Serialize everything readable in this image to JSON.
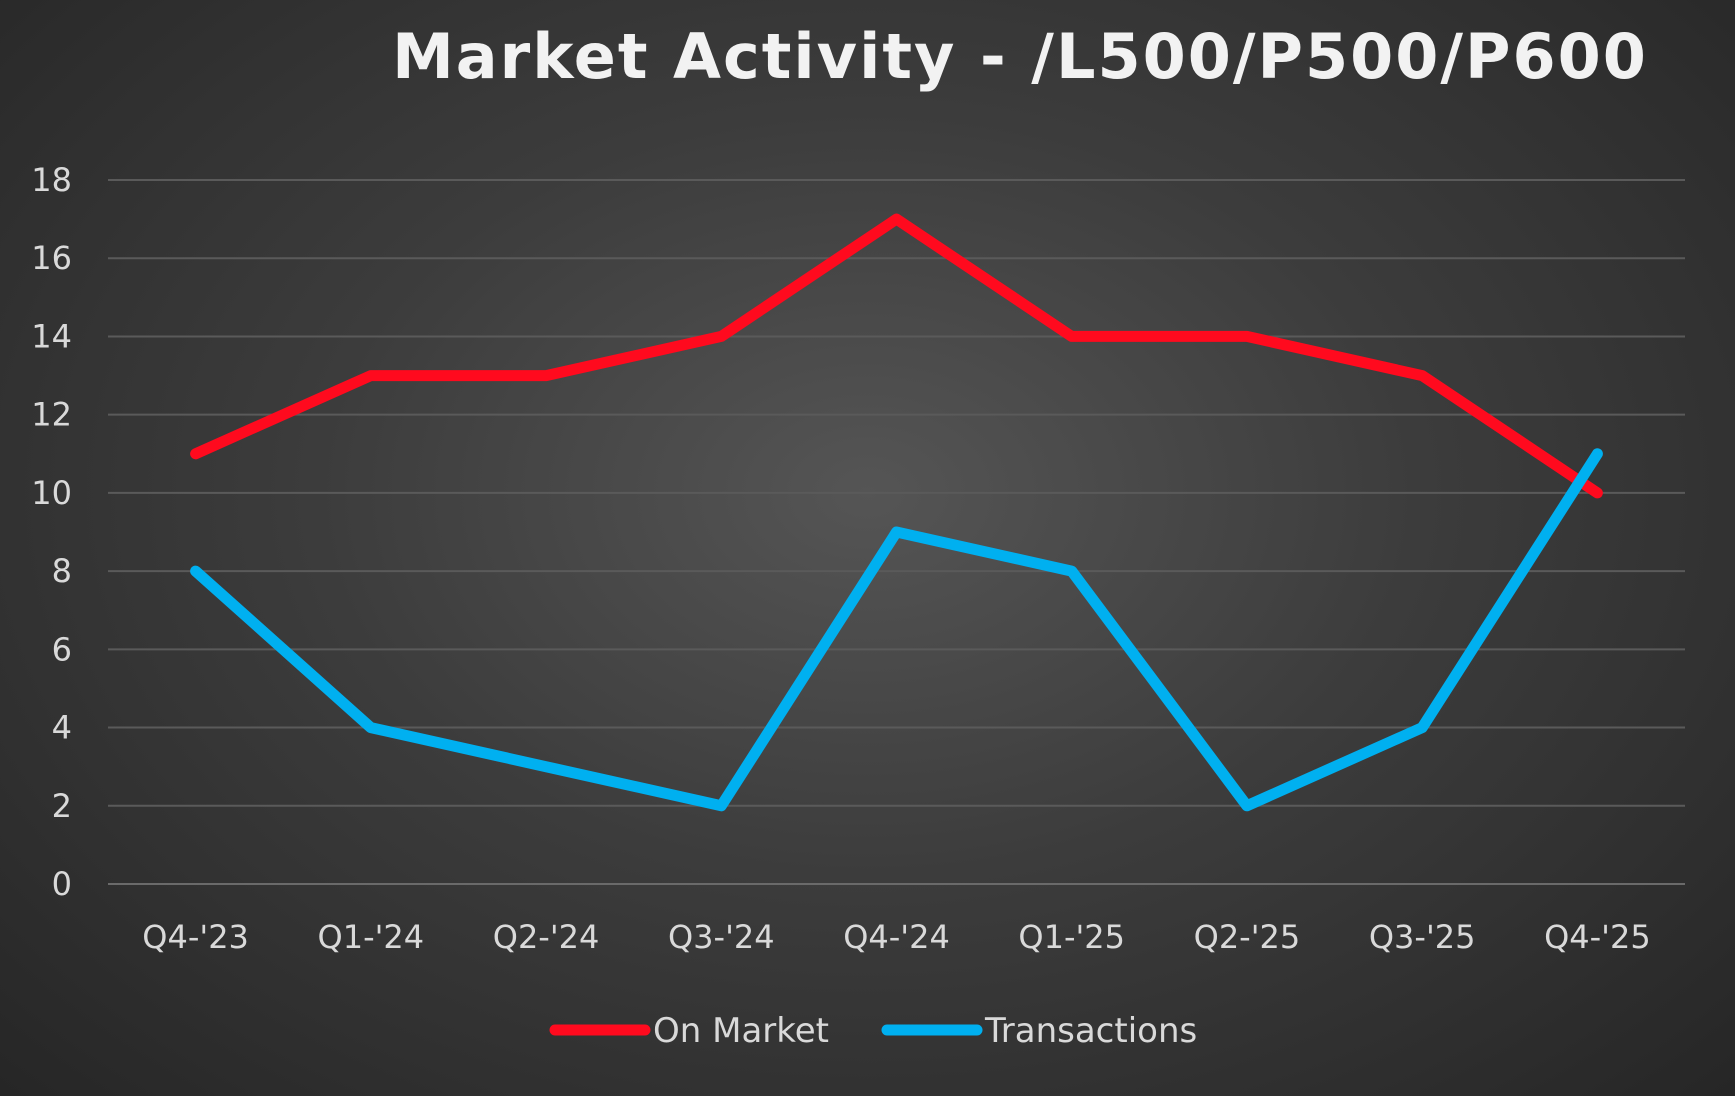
{
  "chart_data": {
    "type": "line",
    "title": "Market Activity - /L500/P500/P600",
    "xlabel": "",
    "ylabel": "",
    "categories": [
      "Q4-'23",
      "Q1-'24",
      "Q2-'24",
      "Q3-'24",
      "Q4-'24",
      "Q1-'25",
      "Q2-'25",
      "Q3-'25",
      "Q4-'25"
    ],
    "ylim": [
      0,
      18
    ],
    "yticks": [
      "0",
      "2",
      "4",
      "6",
      "8",
      "10",
      "12",
      "14",
      "16",
      "18"
    ],
    "grid": true,
    "legend_position": "bottom",
    "series": [
      {
        "name": "On Market",
        "color": "#ff0a1e",
        "values": [
          11,
          13,
          13,
          14,
          17,
          14,
          14,
          13,
          10
        ]
      },
      {
        "name": "Transactions",
        "color": "#00b0f0",
        "values": [
          8,
          4,
          3,
          2,
          9,
          8,
          2,
          4,
          11
        ]
      }
    ]
  }
}
